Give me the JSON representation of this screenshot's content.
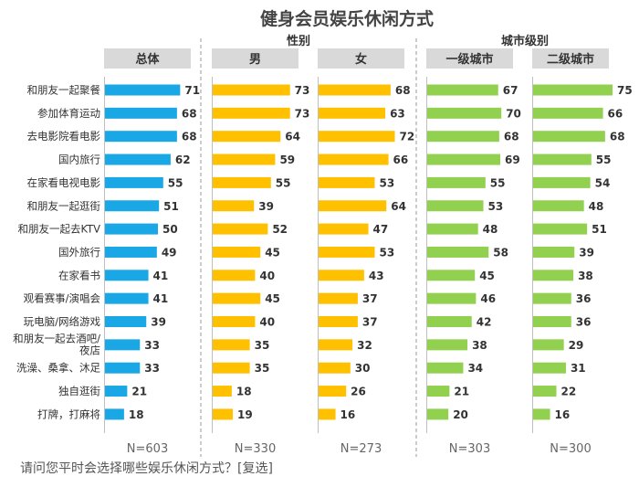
{
  "chart_data": {
    "type": "bar",
    "title": "健身会员娱乐休闲方式",
    "group_labels": {
      "gender": "性别",
      "city": "城市级别"
    },
    "categories": [
      "和朋友一起聚餐",
      "参加体育运动",
      "去电影院看电影",
      "国内旅行",
      "在家看电视电影",
      "和朋友一起逛街",
      "和朋友一起去KTV",
      "国外旅行",
      "在家看书",
      "观看赛事/演唱会",
      "玩电脑/网络游戏",
      "和朋友一起去酒吧/夜店",
      "洗澡、桑拿、沐足",
      "独自逛街",
      "打牌，打麻将"
    ],
    "category_lines": [
      [
        "和朋友一起聚餐"
      ],
      [
        "参加体育运动"
      ],
      [
        "去电影院看电影"
      ],
      [
        "国内旅行"
      ],
      [
        "在家看电视电影"
      ],
      [
        "和朋友一起逛街"
      ],
      [
        "和朋友一起去KTV"
      ],
      [
        "国外旅行"
      ],
      [
        "在家看书"
      ],
      [
        "观看赛事/演唱会"
      ],
      [
        "玩电脑/网络游戏"
      ],
      [
        "和朋友一起去酒吧/",
        "夜店"
      ],
      [
        "洗澡、桑拿、沐足"
      ],
      [
        "独自逛街"
      ],
      [
        "打牌，打麻将"
      ]
    ],
    "series": [
      {
        "name": "总体",
        "n_label": "N=603",
        "color": "#1AA7E6",
        "values": [
          71,
          68,
          68,
          62,
          55,
          51,
          50,
          49,
          41,
          41,
          39,
          33,
          33,
          21,
          18
        ]
      },
      {
        "name": "男",
        "n_label": "N=330",
        "color": "#FFC000",
        "values": [
          73,
          73,
          64,
          59,
          55,
          39,
          52,
          45,
          40,
          45,
          40,
          35,
          35,
          18,
          19
        ]
      },
      {
        "name": "女",
        "n_label": "N=273",
        "color": "#FFC000",
        "values": [
          68,
          63,
          72,
          66,
          53,
          64,
          47,
          53,
          43,
          37,
          37,
          32,
          30,
          26,
          16
        ]
      },
      {
        "name": "一级城市",
        "n_label": "N=303",
        "color": "#92D050",
        "values": [
          67,
          70,
          68,
          69,
          55,
          53,
          48,
          58,
          45,
          46,
          42,
          38,
          34,
          21,
          20
        ]
      },
      {
        "name": "二级城市",
        "n_label": "N=300",
        "color": "#92D050",
        "values": [
          75,
          66,
          68,
          55,
          54,
          48,
          51,
          39,
          38,
          36,
          36,
          29,
          31,
          22,
          16
        ]
      }
    ],
    "xlim": [
      0,
      100
    ],
    "footnote": "请问您平时会选择哪些娱乐休闲方式？[复选]"
  }
}
